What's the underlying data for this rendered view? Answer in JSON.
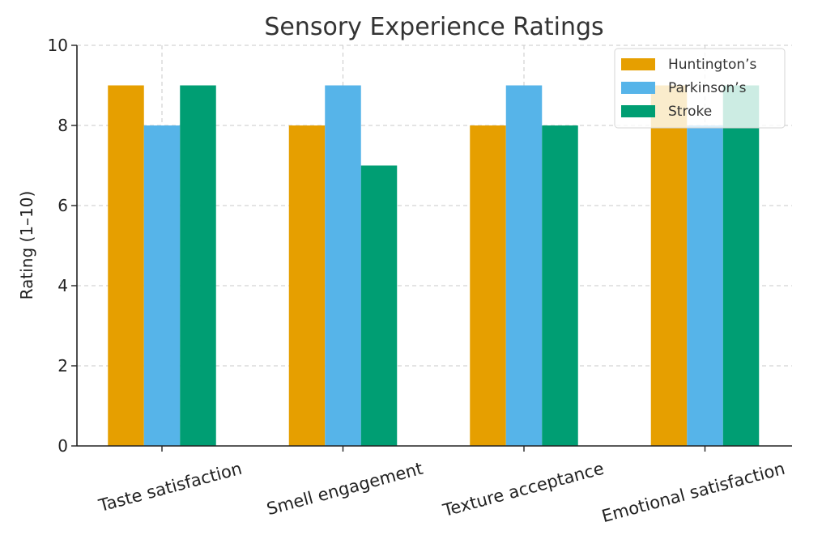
{
  "chart_data": {
    "type": "bar",
    "title": "Sensory Experience Ratings",
    "xlabel": "",
    "ylabel": "Rating (1–10)",
    "ylim": [
      0,
      10
    ],
    "yticks": [
      0,
      2,
      4,
      6,
      8,
      10
    ],
    "grid": true,
    "legend_position": "top-right",
    "categories": [
      "Taste satisfaction",
      "Smell engagement",
      "Texture acceptance",
      "Emotional satisfaction"
    ],
    "series": [
      {
        "name": "Huntington’s",
        "color": "#E69F00",
        "values": [
          9,
          8,
          8,
          9
        ]
      },
      {
        "name": "Parkinson’s",
        "color": "#56B4E9",
        "values": [
          8,
          9,
          9,
          8
        ]
      },
      {
        "name": "Stroke",
        "color": "#009E73",
        "values": [
          9,
          7,
          8,
          9
        ]
      }
    ]
  }
}
